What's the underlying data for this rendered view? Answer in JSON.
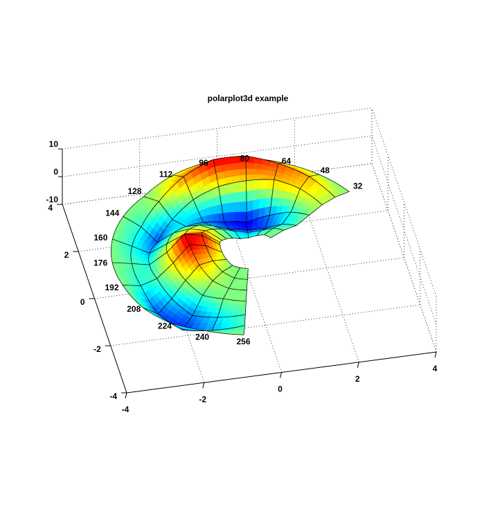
{
  "chart_data": {
    "type": "surface",
    "title": "polarplot3d example",
    "xlim": [
      -4,
      4
    ],
    "xticks": [
      -4,
      -2,
      0,
      2,
      4
    ],
    "ylim": [
      -4,
      4
    ],
    "yticks": [
      -4,
      -2,
      0,
      2,
      4
    ],
    "zlim": [
      -10,
      10
    ],
    "zticks": [
      -10,
      0,
      10
    ],
    "grid": true,
    "colormap": "jet",
    "theta": [
      32,
      48,
      64,
      80,
      96,
      112,
      128,
      144,
      160,
      176,
      192,
      208,
      224,
      240,
      256
    ],
    "r": [
      0.75,
      1.2,
      1.65,
      2.1,
      2.55,
      3.0,
      3.5
    ],
    "z": [
      [
        0,
        0,
        -1,
        -2,
        -2,
        -1,
        0,
        1,
        2,
        3,
        2,
        1,
        0,
        0,
        0
      ],
      [
        0,
        -1,
        -3,
        -4,
        -3,
        -1,
        1,
        3,
        5,
        7,
        6,
        3,
        1,
        0,
        0
      ],
      [
        -1,
        -3,
        -6,
        -7,
        -6,
        -3,
        0,
        2,
        4,
        8,
        8,
        4,
        1,
        0,
        0
      ],
      [
        0,
        -2,
        -5,
        -8,
        -7,
        -5,
        -3,
        -1,
        0,
        2,
        3,
        1,
        -1,
        0,
        0
      ],
      [
        1,
        3,
        4,
        3,
        2,
        0,
        -3,
        -6,
        -4,
        -2,
        -1,
        -3,
        -5,
        -3,
        -1
      ],
      [
        1,
        4,
        6,
        8,
        8,
        5,
        1,
        -2,
        -2,
        -1,
        -2,
        -6,
        -7,
        -4,
        -1
      ],
      [
        0,
        1,
        2,
        3,
        3,
        2,
        0,
        0,
        0,
        0,
        0,
        -1,
        -1,
        0,
        0
      ]
    ]
  }
}
